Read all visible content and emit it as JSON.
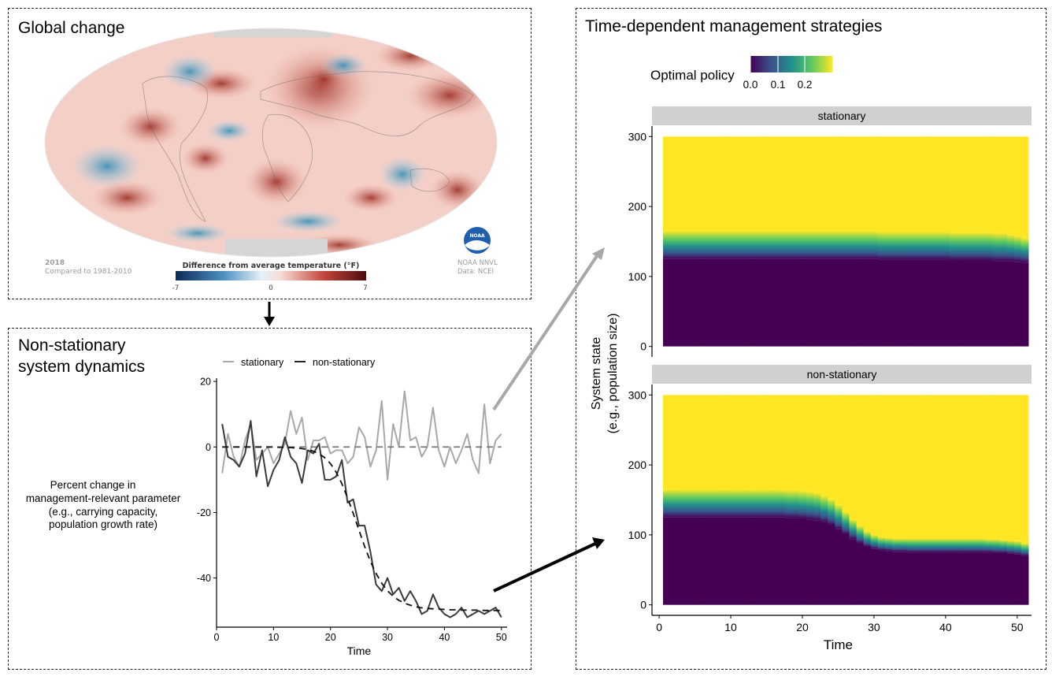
{
  "global_panel": {
    "title": "Global change",
    "year": "2018",
    "comparison": "Compared to 1981-2010",
    "scale_title": "Difference from average temperature (°F)",
    "scale_min": "-7",
    "scale_mid": "0",
    "scale_max": "7",
    "agency_line1": "NOAA NNVL",
    "agency_line2": "Data: NCEI",
    "logo_text": "NOAA"
  },
  "dynamics_panel": {
    "title_line1": "Non-stationary",
    "title_line2": "system dynamics",
    "ylabel_lines": [
      "Percent change in",
      "management-relevant parameter",
      "(e.g., carrying capacity,",
      "population growth rate)"
    ]
  },
  "strategy_panel": {
    "title": "Time-dependent management strategies",
    "legend_title": "Optimal policy",
    "legend_ticks": [
      "0.0",
      "0.1",
      "0.2"
    ],
    "ylabel_line1": "System state",
    "ylabel_line2": "(e.g., population size)"
  },
  "colors": {
    "stationary": "#a8a8a8",
    "non_stationary": "#3a3a3a",
    "viridis_low": "#440154",
    "viridis_high": "#fde725",
    "strip_bg": "#d0d0d0",
    "arrow_gray": "#a8a8a8"
  },
  "chart_data": [
    {
      "type": "line",
      "xlabel": "Time",
      "ylabel": "Percent change in management-relevant parameter (e.g., carrying capacity, population growth rate)",
      "xlim": [
        0,
        51
      ],
      "ylim": [
        -55,
        21
      ],
      "xticks": [
        0,
        10,
        20,
        30,
        40,
        50
      ],
      "yticks": [
        20,
        0,
        -20,
        -40
      ],
      "legend": [
        "stationary",
        "non-stationary"
      ],
      "x": [
        1,
        2,
        3,
        4,
        5,
        6,
        7,
        8,
        9,
        10,
        11,
        12,
        13,
        14,
        15,
        16,
        17,
        18,
        19,
        20,
        21,
        22,
        23,
        24,
        25,
        26,
        27,
        28,
        29,
        30,
        31,
        32,
        33,
        34,
        35,
        36,
        37,
        38,
        39,
        40,
        41,
        42,
        43,
        44,
        45,
        46,
        47,
        48,
        49,
        50
      ],
      "series": [
        {
          "name": "stationary",
          "style": "solid",
          "values": [
            -8,
            4,
            -3,
            -6,
            2,
            7,
            -4,
            -2,
            0,
            -5,
            -2,
            1,
            11,
            4,
            9,
            -4,
            2,
            2,
            3,
            -2,
            -1,
            -1,
            -5,
            -3,
            6,
            3,
            -6,
            -1,
            14,
            -10,
            7,
            0,
            17,
            2,
            3,
            -3,
            0,
            12,
            -1,
            -6,
            0,
            -5,
            -1,
            4,
            -4,
            -8,
            13,
            -5,
            2,
            4
          ]
        },
        {
          "name": "non-stationary",
          "style": "solid",
          "values": [
            7,
            -3,
            -4,
            -6,
            -2,
            8,
            -9,
            -1,
            -12,
            -7,
            -4,
            3,
            -3,
            -5,
            -11,
            -1,
            -2,
            1,
            -10,
            -10,
            -9,
            -4,
            -17,
            -16,
            -24,
            -24,
            -32,
            -42,
            -44,
            -40,
            -45,
            -43,
            -47,
            -44,
            -47,
            -51,
            -50,
            -45,
            -49,
            -51,
            -52,
            -51,
            -49,
            -52,
            -51,
            -50,
            -51,
            -50,
            -49,
            -52
          ]
        },
        {
          "name": "stationary mean",
          "style": "dashed",
          "values": [
            0,
            0,
            0,
            0,
            0,
            0,
            0,
            0,
            0,
            0,
            0,
            0,
            0,
            0,
            0,
            0,
            0,
            0,
            0,
            0,
            0,
            0,
            0,
            0,
            0,
            0,
            0,
            0,
            0,
            0,
            0,
            0,
            0,
            0,
            0,
            0,
            0,
            0,
            0,
            0,
            0,
            0,
            0,
            0,
            0,
            0,
            0,
            0,
            0,
            0
          ]
        },
        {
          "name": "non-stationary mean",
          "style": "dashed",
          "values": [
            0,
            0,
            0,
            0,
            0,
            0,
            0,
            0,
            0,
            0,
            -0.1,
            -0.1,
            -0.2,
            -0.3,
            -0.5,
            -0.8,
            -1.3,
            -2.1,
            -3.3,
            -5.1,
            -7.7,
            -11.2,
            -15.5,
            -20.3,
            -25.4,
            -30.4,
            -34.9,
            -38.6,
            -41.6,
            -43.9,
            -45.6,
            -46.8,
            -47.7,
            -48.3,
            -48.8,
            -49.1,
            -49.3,
            -49.4,
            -49.5,
            -49.6,
            -49.7,
            -49.7,
            -49.8,
            -49.8,
            -49.8,
            -49.8,
            -49.9,
            -49.9,
            -49.9,
            -49.9
          ]
        }
      ]
    },
    {
      "type": "heatmap",
      "facet": "stationary",
      "xlabel": "Time",
      "ylabel": "System state (e.g., population size)",
      "xlim": [
        -1,
        52
      ],
      "ylim": [
        -15,
        315
      ],
      "xticks": [
        0,
        10,
        20,
        30,
        40,
        50
      ],
      "yticks": [
        0,
        100,
        200,
        300
      ],
      "legend_range": [
        0,
        0.27
      ],
      "x_range": [
        1,
        51
      ],
      "state_range": [
        0,
        300
      ],
      "transition_lower": [
        125,
        125,
        125,
        125,
        125,
        125,
        125,
        125,
        125,
        125,
        125,
        125,
        125,
        125,
        125,
        125,
        125,
        125,
        125,
        125,
        125,
        125,
        125,
        125,
        125,
        125,
        125,
        125,
        125,
        125,
        124,
        124,
        124,
        124,
        124,
        124,
        124,
        124,
        124,
        124,
        123,
        123,
        123,
        123,
        123,
        123,
        122,
        122,
        122,
        121,
        120
      ],
      "transition_upper": [
        165,
        165,
        165,
        165,
        165,
        165,
        165,
        165,
        165,
        165,
        165,
        165,
        165,
        165,
        165,
        165,
        165,
        165,
        165,
        165,
        165,
        165,
        165,
        165,
        165,
        165,
        165,
        165,
        165,
        165,
        164,
        164,
        164,
        164,
        164,
        164,
        164,
        164,
        164,
        164,
        163,
        163,
        163,
        163,
        163,
        163,
        162,
        162,
        160,
        158,
        155
      ]
    },
    {
      "type": "heatmap",
      "facet": "non-stationary",
      "xlabel": "Time",
      "ylabel": "System state (e.g., population size)",
      "xlim": [
        -1,
        52
      ],
      "ylim": [
        -15,
        315
      ],
      "xticks": [
        0,
        10,
        20,
        30,
        40,
        50
      ],
      "yticks": [
        0,
        100,
        200,
        300
      ],
      "x_range": [
        1,
        51
      ],
      "state_range": [
        0,
        300
      ],
      "transition_lower": [
        125,
        125,
        125,
        125,
        125,
        125,
        125,
        125,
        125,
        125,
        125,
        125,
        125,
        125,
        125,
        125,
        125,
        124,
        124,
        123,
        122,
        121,
        118,
        114,
        108,
        101,
        94,
        88,
        83,
        80,
        78,
        77,
        76,
        76,
        75,
        75,
        75,
        75,
        75,
        75,
        75,
        75,
        75,
        75,
        75,
        75,
        74,
        74,
        73,
        72,
        70
      ],
      "transition_upper": [
        165,
        165,
        165,
        165,
        165,
        165,
        165,
        165,
        165,
        165,
        165,
        165,
        165,
        165,
        165,
        165,
        165,
        164,
        164,
        163,
        162,
        160,
        156,
        151,
        143,
        133,
        122,
        113,
        105,
        100,
        97,
        96,
        95,
        95,
        95,
        95,
        95,
        95,
        95,
        95,
        95,
        95,
        95,
        95,
        95,
        94,
        94,
        93,
        92,
        91,
        88
      ]
    }
  ]
}
